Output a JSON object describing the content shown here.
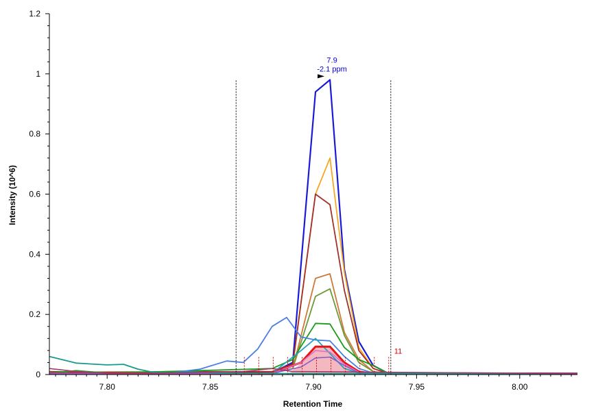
{
  "chart_data": {
    "type": "line",
    "xlabel": "Retention Time",
    "ylabel": "Intensity (10^6)",
    "xlim": [
      7.772,
      8.028
    ],
    "ylim": [
      0,
      1.2
    ],
    "x_ticks": [
      "7.80",
      "7.85",
      "7.90",
      "7.95",
      "8.00"
    ],
    "x_tick_values": [
      7.8,
      7.85,
      7.9,
      7.95,
      8.0
    ],
    "y_ticks": [
      "0",
      "0.2",
      "0.4",
      "0.6",
      "0.8",
      "1",
      "1.2"
    ],
    "y_tick_values": [
      0,
      0.2,
      0.4,
      0.6,
      0.8,
      1.0,
      1.2
    ],
    "peak_label_line1": "7.9",
    "peak_label_line2": "-2.1 ppm",
    "peak_label_color": "#0000dd",
    "peak_marker": {
      "x": 7.905,
      "y": 0.985
    },
    "integration_bounds": [
      7.8625,
      7.9375
    ],
    "count_label": "11",
    "count_label_color": "#dd0000",
    "scan_ticks": [
      7.8665,
      7.8735,
      7.8805,
      7.8875,
      7.8945,
      7.9015,
      7.9085,
      7.9155,
      7.9225,
      7.9295,
      7.9365
    ],
    "series": [
      {
        "color": "#1a1ad6",
        "width": 2.2,
        "points": [
          [
            7.772,
            0.003
          ],
          [
            7.84,
            0.004
          ],
          [
            7.88,
            0.006
          ],
          [
            7.89,
            0.04
          ],
          [
            7.901,
            0.94
          ],
          [
            7.908,
            0.98
          ],
          [
            7.915,
            0.35
          ],
          [
            7.922,
            0.11
          ],
          [
            7.929,
            0.03
          ],
          [
            7.936,
            0.005
          ],
          [
            8.028,
            0.004
          ]
        ]
      },
      {
        "color": "#f5a623",
        "width": 1.8,
        "points": [
          [
            7.772,
            0.003
          ],
          [
            7.88,
            0.005
          ],
          [
            7.89,
            0.03
          ],
          [
            7.901,
            0.6
          ],
          [
            7.908,
            0.72
          ],
          [
            7.915,
            0.34
          ],
          [
            7.922,
            0.09
          ],
          [
            7.929,
            0.02
          ],
          [
            7.936,
            0.004
          ],
          [
            8.028,
            0.003
          ]
        ]
      },
      {
        "color": "#a0302a",
        "width": 1.8,
        "points": [
          [
            7.772,
            0.01
          ],
          [
            7.79,
            0.008
          ],
          [
            7.88,
            0.01
          ],
          [
            7.89,
            0.035
          ],
          [
            7.901,
            0.6
          ],
          [
            7.908,
            0.565
          ],
          [
            7.915,
            0.28
          ],
          [
            7.922,
            0.08
          ],
          [
            7.929,
            0.02
          ],
          [
            7.936,
            0.004
          ],
          [
            8.028,
            0.003
          ]
        ]
      },
      {
        "color": "#cc7a3a",
        "width": 1.8,
        "points": [
          [
            7.772,
            0.003
          ],
          [
            7.88,
            0.004
          ],
          [
            7.89,
            0.02
          ],
          [
            7.901,
            0.32
          ],
          [
            7.908,
            0.335
          ],
          [
            7.915,
            0.14
          ],
          [
            7.922,
            0.05
          ],
          [
            7.929,
            0.01
          ],
          [
            7.936,
            0.003
          ],
          [
            8.028,
            0.003
          ]
        ]
      },
      {
        "color": "#6e9a3a",
        "width": 1.8,
        "points": [
          [
            7.772,
            0.003
          ],
          [
            7.88,
            0.004
          ],
          [
            7.89,
            0.02
          ],
          [
            7.901,
            0.26
          ],
          [
            7.908,
            0.285
          ],
          [
            7.915,
            0.13
          ],
          [
            7.922,
            0.04
          ],
          [
            7.929,
            0.01
          ],
          [
            7.936,
            0.003
          ],
          [
            8.028,
            0.003
          ]
        ]
      },
      {
        "color": "#1a9a1a",
        "width": 1.8,
        "points": [
          [
            7.772,
            0.005
          ],
          [
            7.785,
            0.013
          ],
          [
            7.8,
            0.005
          ],
          [
            7.84,
            0.012
          ],
          [
            7.865,
            0.017
          ],
          [
            7.88,
            0.02
          ],
          [
            7.89,
            0.05
          ],
          [
            7.901,
            0.17
          ],
          [
            7.908,
            0.168
          ],
          [
            7.915,
            0.09
          ],
          [
            7.922,
            0.05
          ],
          [
            7.929,
            0.03
          ],
          [
            7.936,
            0.005
          ],
          [
            8.028,
            0.003
          ]
        ]
      },
      {
        "color": "#4a7ee0",
        "width": 1.8,
        "points": [
          [
            7.772,
            0.005
          ],
          [
            7.8,
            0.004
          ],
          [
            7.83,
            0.005
          ],
          [
            7.845,
            0.018
          ],
          [
            7.858,
            0.045
          ],
          [
            7.866,
            0.04
          ],
          [
            7.873,
            0.085
          ],
          [
            7.88,
            0.16
          ],
          [
            7.887,
            0.19
          ],
          [
            7.894,
            0.125
          ],
          [
            7.901,
            0.115
          ],
          [
            7.908,
            0.112
          ],
          [
            7.915,
            0.06
          ],
          [
            7.922,
            0.02
          ],
          [
            7.929,
            0.005
          ],
          [
            8.028,
            0.003
          ]
        ]
      },
      {
        "color": "#2aa0c0",
        "width": 1.8,
        "points": [
          [
            7.772,
            0.003
          ],
          [
            7.88,
            0.004
          ],
          [
            7.894,
            0.08
          ],
          [
            7.901,
            0.12
          ],
          [
            7.908,
            0.07
          ],
          [
            7.915,
            0.02
          ],
          [
            7.922,
            0.005
          ],
          [
            8.028,
            0.003
          ]
        ]
      },
      {
        "color": "#e81414",
        "width": 3,
        "points": [
          [
            7.772,
            0.003
          ],
          [
            7.88,
            0.004
          ],
          [
            7.894,
            0.04
          ],
          [
            7.901,
            0.093
          ],
          [
            7.908,
            0.093
          ],
          [
            7.915,
            0.04
          ],
          [
            7.922,
            0.01
          ],
          [
            7.929,
            0.003
          ],
          [
            8.028,
            0.003
          ]
        ]
      },
      {
        "color": "#e070c0",
        "width": 1.6,
        "points": [
          [
            7.772,
            0.003
          ],
          [
            7.88,
            0.004
          ],
          [
            7.894,
            0.04
          ],
          [
            7.901,
            0.08
          ],
          [
            7.908,
            0.075
          ],
          [
            7.915,
            0.035
          ],
          [
            7.922,
            0.008
          ],
          [
            8.028,
            0.003
          ]
        ]
      },
      {
        "color": "#8a5ac8",
        "width": 1.6,
        "points": [
          [
            7.772,
            0.003
          ],
          [
            7.88,
            0.004
          ],
          [
            7.894,
            0.025
          ],
          [
            7.901,
            0.055
          ],
          [
            7.908,
            0.058
          ],
          [
            7.915,
            0.03
          ],
          [
            7.922,
            0.006
          ],
          [
            8.028,
            0.003
          ]
        ]
      },
      {
        "color": "#179a8a",
        "width": 1.8,
        "points": [
          [
            7.772,
            0.06
          ],
          [
            7.785,
            0.038
          ],
          [
            7.8,
            0.032
          ],
          [
            7.808,
            0.034
          ],
          [
            7.815,
            0.018
          ],
          [
            7.822,
            0.008
          ],
          [
            7.83,
            0.006
          ],
          [
            7.84,
            0.009
          ],
          [
            7.86,
            0.004
          ],
          [
            7.9,
            0.003
          ],
          [
            8.028,
            0.003
          ]
        ]
      },
      {
        "color": "#a03a6a",
        "width": 1.6,
        "points": [
          [
            7.772,
            0.02
          ],
          [
            7.785,
            0.01
          ],
          [
            7.8,
            0.004
          ],
          [
            7.82,
            0.004
          ],
          [
            7.85,
            0.008
          ],
          [
            7.866,
            0.01
          ],
          [
            7.88,
            0.02
          ],
          [
            7.89,
            0.01
          ],
          [
            8.028,
            0.003
          ]
        ]
      }
    ],
    "fill_series": {
      "color": "#f4b8c0",
      "points": [
        [
          7.8875,
          0.0
        ],
        [
          7.8945,
          0.04
        ],
        [
          7.9015,
          0.093
        ],
        [
          7.9085,
          0.093
        ],
        [
          7.9155,
          0.04
        ],
        [
          7.9225,
          0.008
        ],
        [
          7.9295,
          0.0
        ]
      ]
    }
  }
}
